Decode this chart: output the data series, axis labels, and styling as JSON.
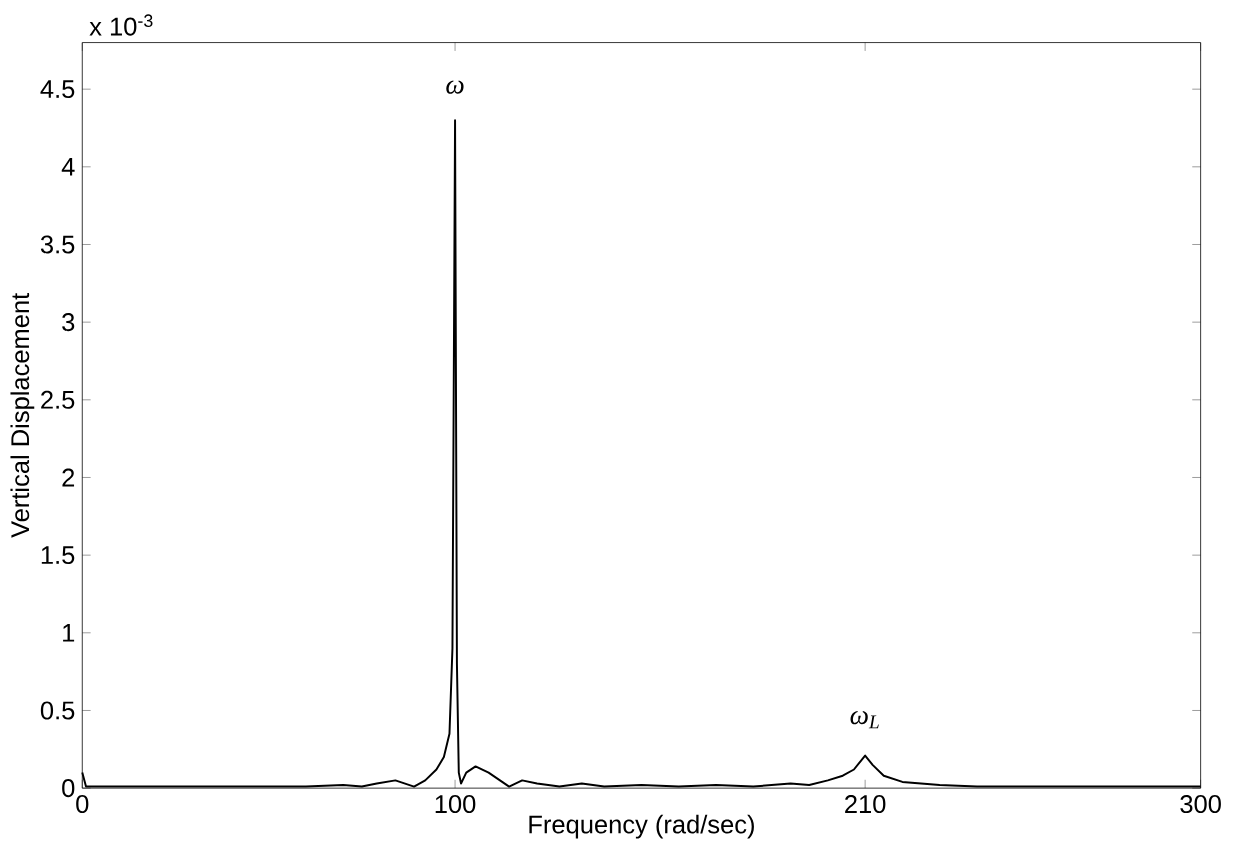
{
  "chart_data": {
    "type": "line",
    "xlabel": "Frequency (rad/sec)",
    "ylabel": "Vertical Displacement",
    "annotations": [
      "x 10$^{-3}$",
      {
        "text": "ω",
        "x": 100,
        "y": 4.3
      },
      {
        "text": "ω$_{L}$",
        "x": 210,
        "y": 0.215
      }
    ],
    "x": [
      0,
      1,
      10,
      20,
      30,
      40,
      50,
      60,
      70,
      75,
      79,
      84,
      89,
      92,
      95,
      97,
      98.5,
      99.3,
      100,
      100.5,
      101,
      101.6,
      103,
      105.5,
      109,
      114.5,
      118,
      122,
      128,
      134,
      140,
      150,
      160,
      170,
      180,
      190,
      195,
      200,
      204,
      207,
      210,
      212,
      215,
      220,
      230,
      240,
      260,
      280,
      300
    ],
    "series": [
      {
        "color": "#000000",
        "values": [
          0.1,
          0.01,
          0.01,
          0.01,
          0.01,
          0.01,
          0.01,
          0.01,
          0.02,
          0.01,
          0.03,
          0.05,
          0.01,
          0.05,
          0.12,
          0.2,
          0.35,
          0.9,
          4.3,
          0.8,
          0.1,
          0.03,
          0.1,
          0.14,
          0.1,
          0.01,
          0.05,
          0.03,
          0.01,
          0.03,
          0.01,
          0.02,
          0.01,
          0.02,
          0.01,
          0.03,
          0.02,
          0.05,
          0.08,
          0.12,
          0.21,
          0.15,
          0.08,
          0.04,
          0.02,
          0.01,
          0.01,
          0.01,
          0.01
        ]
      }
    ],
    "xlim": [
      0,
      300
    ],
    "ylim": [
      0,
      4.8
    ],
    "xticks": [
      0,
      100,
      210,
      300
    ],
    "yticks": [
      0,
      0.5,
      1,
      1.5,
      2,
      2.5,
      3,
      3.5,
      4,
      4.5
    ],
    "grid": false,
    "marker": "none",
    "line_style": "solid"
  }
}
